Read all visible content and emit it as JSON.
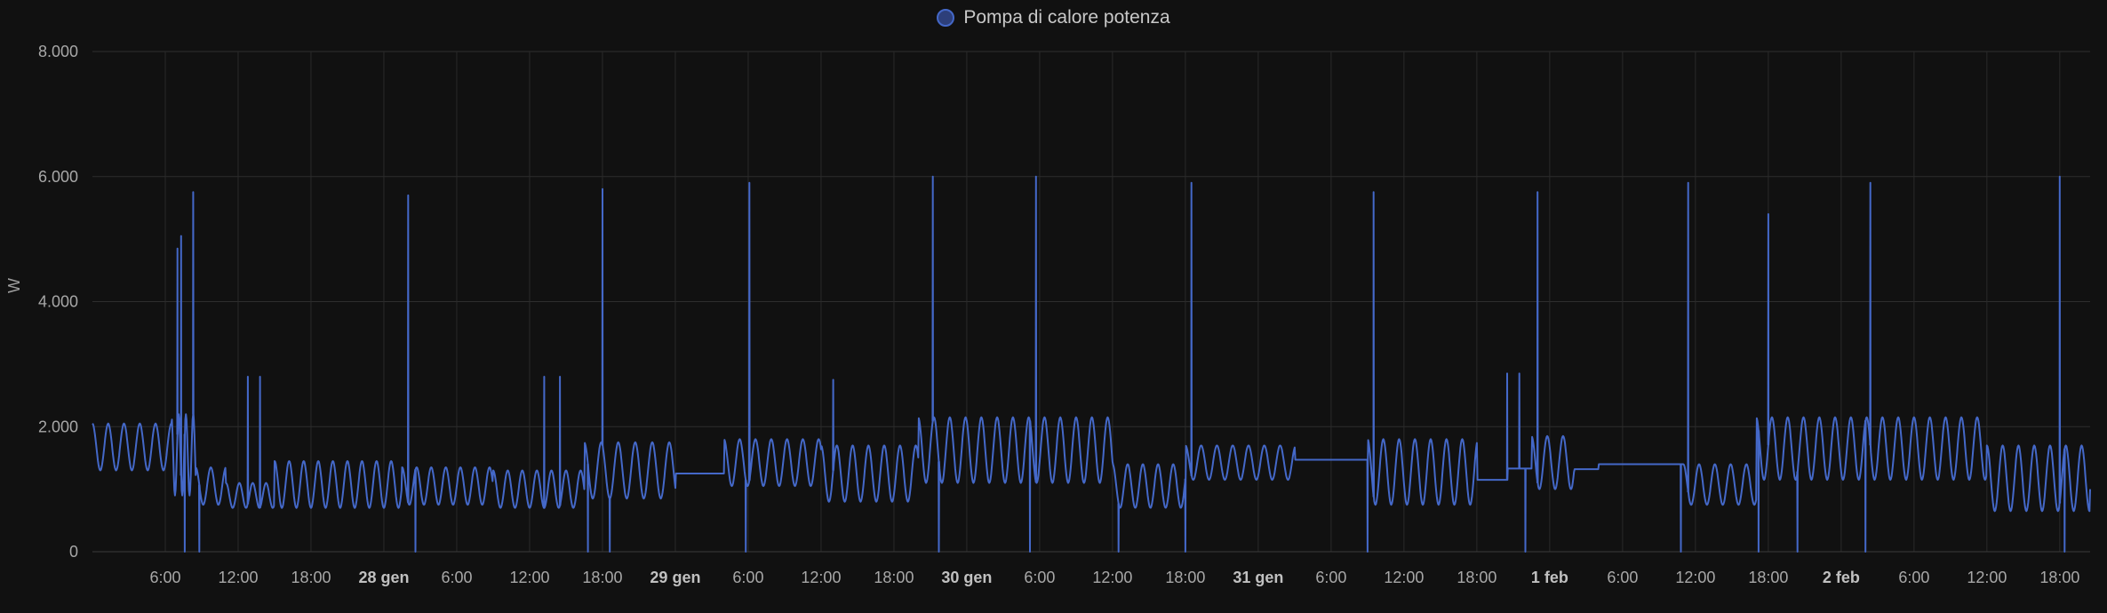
{
  "legend": {
    "label": "Pompa di calore potenza",
    "color": "#4468c8"
  },
  "chart_data": {
    "type": "line",
    "title": "",
    "xlabel": "",
    "ylabel": "W",
    "ylim": [
      0,
      8000
    ],
    "y_ticks": [
      0,
      2000,
      4000,
      6000,
      8000
    ],
    "y_tick_labels": [
      "0",
      "2.000",
      "4.000",
      "6.000",
      "8.000"
    ],
    "grid": true,
    "legend_position": "top-center",
    "x_range_hours": [
      0,
      164.5
    ],
    "x_ticks": [
      {
        "h": 6,
        "label": "6:00",
        "major": false
      },
      {
        "h": 12,
        "label": "12:00",
        "major": false
      },
      {
        "h": 18,
        "label": "18:00",
        "major": false
      },
      {
        "h": 24,
        "label": "28 gen",
        "major": true
      },
      {
        "h": 30,
        "label": "6:00",
        "major": false
      },
      {
        "h": 36,
        "label": "12:00",
        "major": false
      },
      {
        "h": 42,
        "label": "18:00",
        "major": false
      },
      {
        "h": 48,
        "label": "29 gen",
        "major": true
      },
      {
        "h": 54,
        "label": "6:00",
        "major": false
      },
      {
        "h": 60,
        "label": "12:00",
        "major": false
      },
      {
        "h": 66,
        "label": "18:00",
        "major": false
      },
      {
        "h": 72,
        "label": "30 gen",
        "major": true
      },
      {
        "h": 78,
        "label": "6:00",
        "major": false
      },
      {
        "h": 84,
        "label": "12:00",
        "major": false
      },
      {
        "h": 90,
        "label": "18:00",
        "major": false
      },
      {
        "h": 96,
        "label": "31 gen",
        "major": true
      },
      {
        "h": 102,
        "label": "6:00",
        "major": false
      },
      {
        "h": 108,
        "label": "12:00",
        "major": false
      },
      {
        "h": 114,
        "label": "18:00",
        "major": false
      },
      {
        "h": 120,
        "label": "1 feb",
        "major": true
      },
      {
        "h": 126,
        "label": "6:00",
        "major": false
      },
      {
        "h": 132,
        "label": "12:00",
        "major": false
      },
      {
        "h": 138,
        "label": "18:00",
        "major": false
      },
      {
        "h": 144,
        "label": "2 feb",
        "major": true
      },
      {
        "h": 150,
        "label": "6:00",
        "major": false
      },
      {
        "h": 156,
        "label": "12:00",
        "major": false
      },
      {
        "h": 162,
        "label": "18:00",
        "major": false
      }
    ],
    "series": [
      {
        "name": "Pompa di calore potenza",
        "color": "#4468c8",
        "x_unit": "hours",
        "baseline_segments": [
          {
            "start": 0,
            "end": 6.5,
            "low": 1300,
            "high": 2050,
            "period": 1.3
          },
          {
            "start": 6.5,
            "end": 8.5,
            "low": 900,
            "high": 2200,
            "period": 0.6
          },
          {
            "start": 8.5,
            "end": 11,
            "low": 750,
            "high": 1350,
            "period": 1.25
          },
          {
            "start": 11,
            "end": 15,
            "low": 700,
            "high": 1100,
            "period": 1.1
          },
          {
            "start": 15,
            "end": 25.5,
            "low": 700,
            "high": 1450,
            "period": 1.2
          },
          {
            "start": 25.5,
            "end": 33,
            "low": 750,
            "high": 1350,
            "period": 1.2
          },
          {
            "start": 33,
            "end": 40.5,
            "low": 700,
            "high": 1300,
            "period": 1.2
          },
          {
            "start": 40.5,
            "end": 48,
            "low": 850,
            "high": 1750,
            "period": 1.4
          },
          {
            "start": 48,
            "end": 52,
            "flat": 1250
          },
          {
            "start": 52,
            "end": 60,
            "low": 1050,
            "high": 1800,
            "period": 1.3
          },
          {
            "start": 60,
            "end": 68,
            "low": 800,
            "high": 1700,
            "period": 1.3
          },
          {
            "start": 68,
            "end": 84,
            "low": 1100,
            "high": 2150,
            "period": 1.3
          },
          {
            "start": 84,
            "end": 90,
            "low": 700,
            "high": 1400,
            "period": 1.25
          },
          {
            "start": 90,
            "end": 99,
            "low": 1150,
            "high": 1700,
            "period": 1.3
          },
          {
            "start": 99,
            "end": 105,
            "flat": 1470
          },
          {
            "start": 105,
            "end": 114,
            "low": 750,
            "high": 1800,
            "period": 1.3
          },
          {
            "start": 114,
            "end": 116.5,
            "flat": 1150
          },
          {
            "start": 116.5,
            "end": 118.5,
            "flat": 1330
          },
          {
            "start": 118.5,
            "end": 122,
            "low": 1000,
            "high": 1850,
            "period": 1.3
          },
          {
            "start": 122,
            "end": 124,
            "flat": 1320
          },
          {
            "start": 124,
            "end": 131,
            "flat": 1400
          },
          {
            "start": 131,
            "end": 137,
            "low": 750,
            "high": 1400,
            "period": 1.3
          },
          {
            "start": 137,
            "end": 156,
            "low": 1150,
            "high": 2150,
            "period": 1.3
          },
          {
            "start": 156,
            "end": 164.5,
            "low": 650,
            "high": 1700,
            "period": 1.3
          }
        ],
        "spikes": [
          {
            "x": 7.0,
            "y": 4850
          },
          {
            "x": 7.3,
            "y": 5050
          },
          {
            "x": 8.3,
            "y": 5750
          },
          {
            "x": 12.8,
            "y": 2800
          },
          {
            "x": 13.8,
            "y": 2800
          },
          {
            "x": 26.0,
            "y": 5700
          },
          {
            "x": 37.2,
            "y": 2800
          },
          {
            "x": 38.5,
            "y": 2800
          },
          {
            "x": 42.0,
            "y": 5800
          },
          {
            "x": 54.1,
            "y": 5900
          },
          {
            "x": 61.0,
            "y": 2750
          },
          {
            "x": 69.2,
            "y": 6000
          },
          {
            "x": 77.7,
            "y": 6000
          },
          {
            "x": 90.5,
            "y": 5900
          },
          {
            "x": 105.5,
            "y": 5750
          },
          {
            "x": 116.5,
            "y": 2850
          },
          {
            "x": 117.5,
            "y": 2850
          },
          {
            "x": 119.0,
            "y": 5750
          },
          {
            "x": 131.4,
            "y": 5900
          },
          {
            "x": 138.0,
            "y": 5400
          },
          {
            "x": 146.4,
            "y": 5900
          },
          {
            "x": 162.0,
            "y": 6000
          }
        ],
        "drops": [
          7.6,
          8.8,
          26.6,
          40.8,
          42.6,
          53.8,
          69.7,
          77.2,
          84.5,
          90.0,
          105.0,
          118.0,
          130.8,
          137.2,
          140.4,
          146.0,
          162.4
        ]
      }
    ]
  }
}
